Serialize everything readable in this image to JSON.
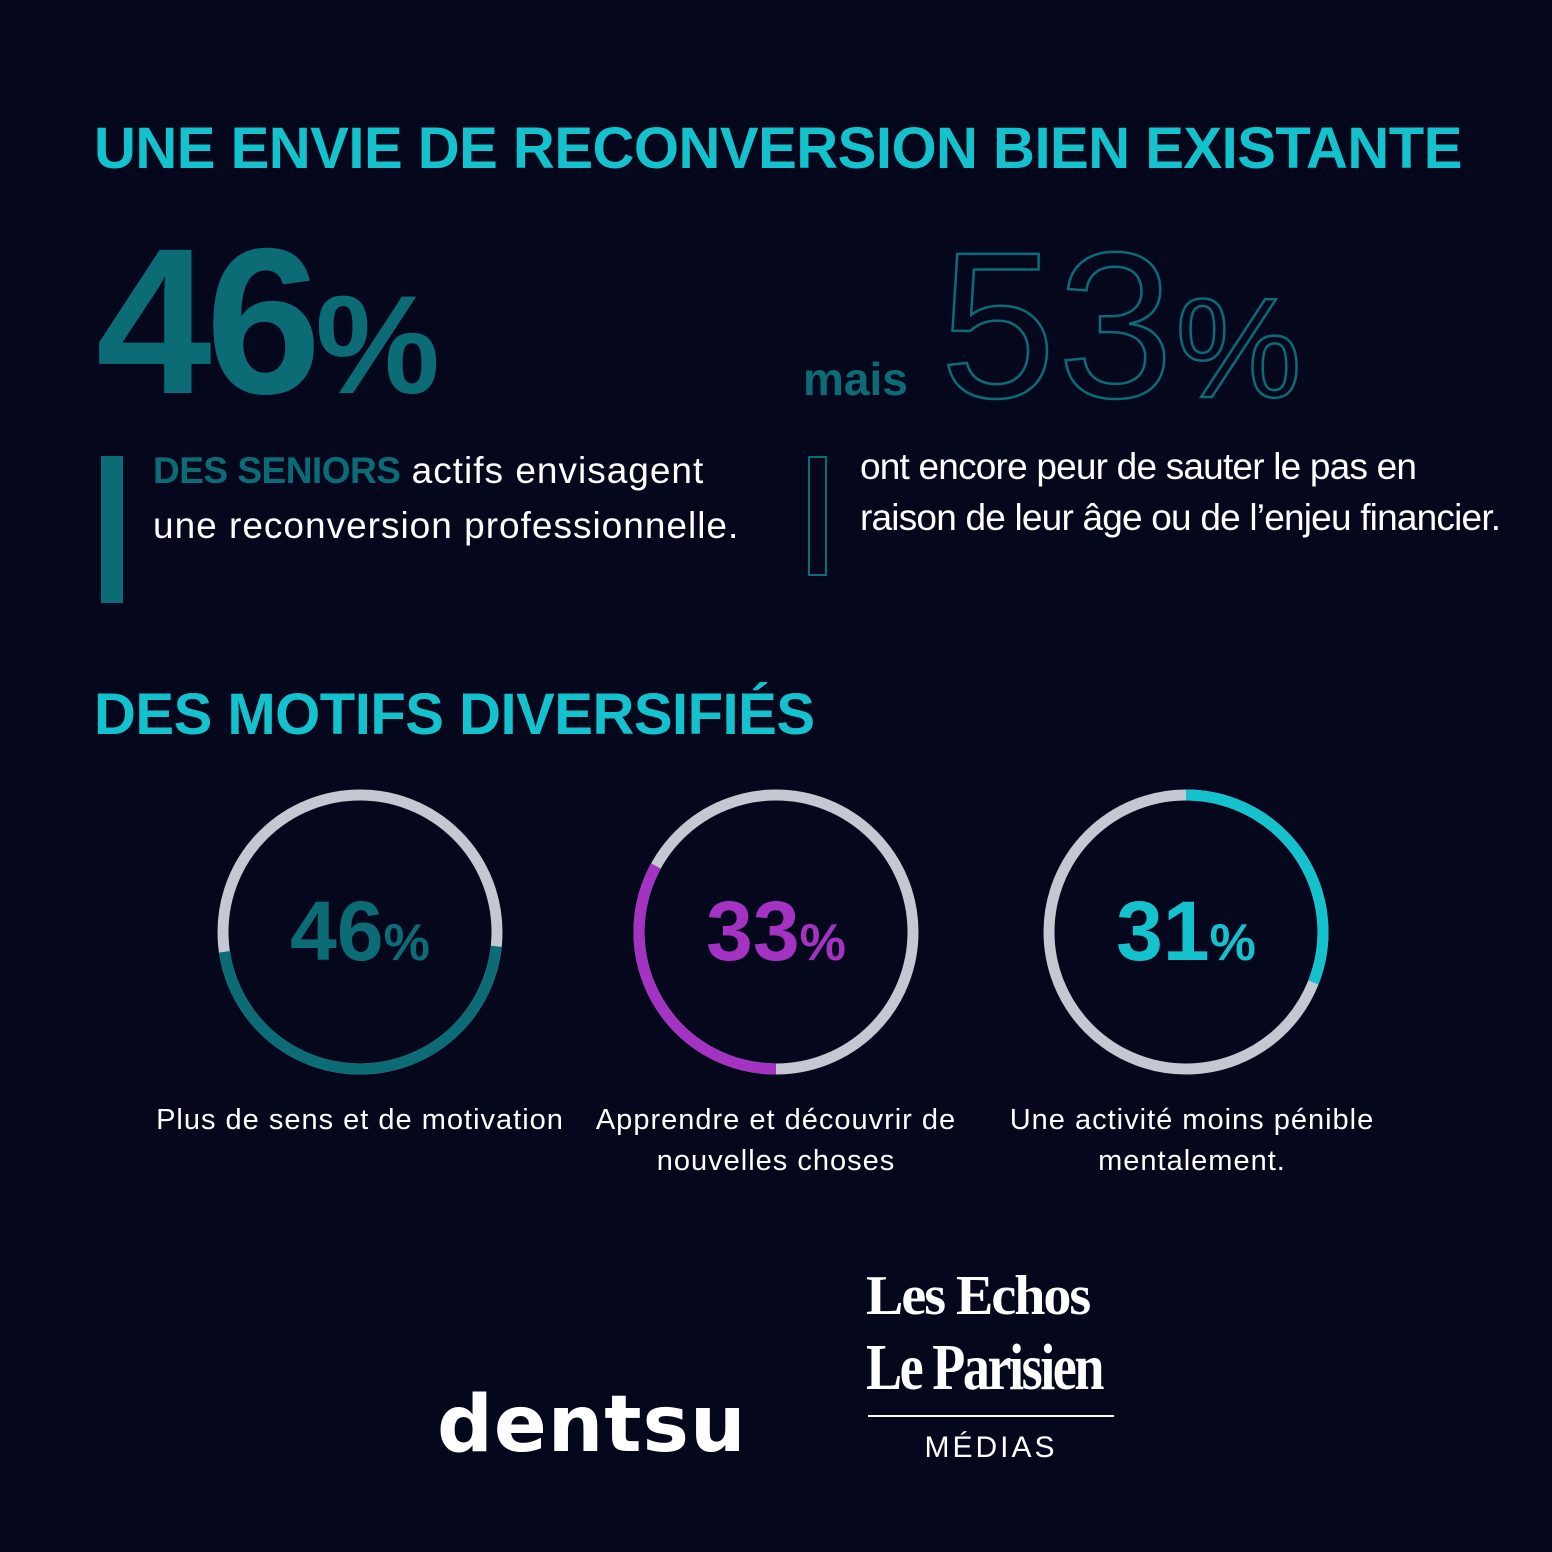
{
  "headings": {
    "section1": "UNE ENVIE DE RECONVERSION BIEN EXISTANTE",
    "section2": "DES MOTIFS DIVERSIFIÉS"
  },
  "stat_left": {
    "value": "46",
    "unit": "%",
    "accent": "DES SENIORS",
    "description": " actifs envisagent une reconversion professionnelle."
  },
  "stat_right": {
    "connector": "mais",
    "value": "53",
    "unit": "%",
    "description": "ont encore peur de sauter le pas en raison de leur âge ou de l’enjeu financier."
  },
  "chart_data": {
    "type": "donut",
    "unit": "%",
    "series": [
      {
        "value": 46,
        "label": "Plus de sens et de motivation",
        "color": "#0b6c76"
      },
      {
        "value": 33,
        "label": "Apprendre et découvrir de nouvelles choses",
        "color": "#a432c2"
      },
      {
        "value": 31,
        "label": "Une activité moins pénible mentalement.",
        "color": "#14c2cd"
      }
    ],
    "track_color": "#c4c8d3"
  },
  "logos": {
    "dentsu": "dentsu",
    "echos": "Les Echos",
    "parisien": "Le Parisien",
    "medias": "MÉDIAS"
  },
  "colors": {
    "background": "#05081d",
    "heading": "#14c2cd",
    "teal_dark": "#0b6c76"
  }
}
